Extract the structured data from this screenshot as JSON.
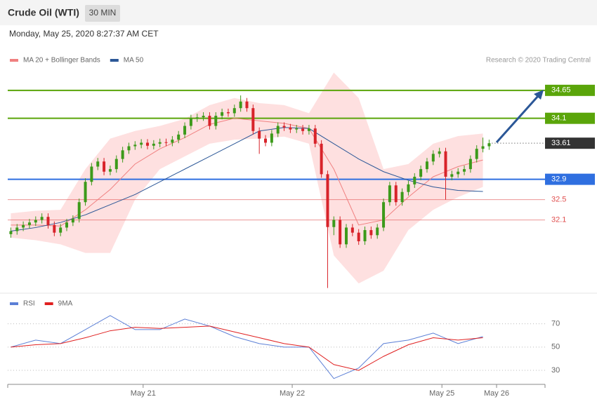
{
  "header": {
    "title": "Crude Oil (WTI)",
    "badge": "30 MIN",
    "date": "Monday, May 25, 2020 8:27:37 AM CET",
    "credit": "Research © 2020 Trading Central"
  },
  "chart_data": [
    {
      "type": "candlestick",
      "xlim": [
        -0.5,
        86
      ],
      "ylim": [
        30.7,
        35.6
      ],
      "candles": {
        "up_color": "#3c9a1a",
        "down_color": "#d8232a",
        "x": [
          0,
          1,
          2,
          3,
          4,
          5,
          6,
          7,
          8,
          9,
          10,
          11,
          12,
          13,
          14,
          15,
          16,
          17,
          18,
          19,
          20,
          21,
          22,
          23,
          24,
          25,
          26,
          27,
          28,
          29,
          30,
          31,
          32,
          33,
          34,
          35,
          36,
          37,
          38,
          39,
          40,
          41,
          42,
          43,
          44,
          45,
          46,
          47,
          48,
          49,
          50,
          51,
          52,
          53,
          54,
          55,
          56,
          57,
          58,
          59,
          60,
          61,
          62,
          63,
          64,
          65,
          66,
          67,
          68,
          69,
          70,
          71,
          72,
          73,
          74,
          75,
          76,
          77
        ],
        "open": [
          31.82,
          31.88,
          31.95,
          32.0,
          32.05,
          32.1,
          32.16,
          32.0,
          31.85,
          31.95,
          32.05,
          32.12,
          32.45,
          32.85,
          33.15,
          33.25,
          33.05,
          33.1,
          33.3,
          33.47,
          33.55,
          33.58,
          33.62,
          33.56,
          33.6,
          33.63,
          33.62,
          33.68,
          33.78,
          33.95,
          34.1,
          34.12,
          34.15,
          33.95,
          34.15,
          34.22,
          34.2,
          34.3,
          34.43,
          34.3,
          33.85,
          33.7,
          33.62,
          33.8,
          33.95,
          33.92,
          33.88,
          33.9,
          33.85,
          33.9,
          33.6,
          33.0,
          31.96,
          32.1,
          31.62,
          31.95,
          31.85,
          31.68,
          31.9,
          31.8,
          31.95,
          32.45,
          32.78,
          32.45,
          32.65,
          32.8,
          32.95,
          33.1,
          33.25,
          33.4,
          33.45,
          32.95,
          33.0,
          33.05,
          33.1,
          33.3,
          33.5,
          33.55
        ],
        "high": [
          31.95,
          32.02,
          32.07,
          32.12,
          32.17,
          32.23,
          32.23,
          32.07,
          32.02,
          32.12,
          32.19,
          32.52,
          32.92,
          33.22,
          33.32,
          33.32,
          33.17,
          33.37,
          33.54,
          33.62,
          33.65,
          33.69,
          33.69,
          33.67,
          33.7,
          33.7,
          33.75,
          33.85,
          34.02,
          34.17,
          34.19,
          34.22,
          34.22,
          34.22,
          34.29,
          34.29,
          34.37,
          34.55,
          34.5,
          34.37,
          33.92,
          33.77,
          33.87,
          34.02,
          34.02,
          33.99,
          33.97,
          33.97,
          33.97,
          33.97,
          33.67,
          33.07,
          32.17,
          32.17,
          32.02,
          32.02,
          31.92,
          31.97,
          31.97,
          32.02,
          32.52,
          32.85,
          32.85,
          32.72,
          32.87,
          33.02,
          33.17,
          33.32,
          33.47,
          33.52,
          33.52,
          33.07,
          33.12,
          33.17,
          33.37,
          33.57,
          33.72,
          33.68
        ],
        "low": [
          31.75,
          31.81,
          31.88,
          31.93,
          31.98,
          32.03,
          31.93,
          31.78,
          31.78,
          31.88,
          31.98,
          32.05,
          32.38,
          32.78,
          33.08,
          32.98,
          32.98,
          33.03,
          33.23,
          33.4,
          33.48,
          33.51,
          33.49,
          33.49,
          33.53,
          33.55,
          33.55,
          33.61,
          33.71,
          33.88,
          34.03,
          34.05,
          33.88,
          33.88,
          34.08,
          34.13,
          34.13,
          34.23,
          34.23,
          33.78,
          33.4,
          33.55,
          33.55,
          33.73,
          33.85,
          33.81,
          33.81,
          33.78,
          33.78,
          33.53,
          32.93,
          30.76,
          31.8,
          31.55,
          31.55,
          31.78,
          31.61,
          31.61,
          31.73,
          31.73,
          31.88,
          32.38,
          32.38,
          32.38,
          32.58,
          32.73,
          32.88,
          33.03,
          33.18,
          33.33,
          32.5,
          32.88,
          32.93,
          32.98,
          33.03,
          33.23,
          33.43,
          33.48
        ],
        "close": [
          31.88,
          31.95,
          32.0,
          32.05,
          32.1,
          32.16,
          32.0,
          31.85,
          31.95,
          32.05,
          32.12,
          32.45,
          32.85,
          33.15,
          33.25,
          33.05,
          33.1,
          33.3,
          33.47,
          33.55,
          33.58,
          33.62,
          33.56,
          33.6,
          33.63,
          33.62,
          33.68,
          33.78,
          33.95,
          34.1,
          34.12,
          34.15,
          33.95,
          34.15,
          34.22,
          34.2,
          34.3,
          34.43,
          34.3,
          33.85,
          33.7,
          33.62,
          33.8,
          33.95,
          33.92,
          33.88,
          33.9,
          33.85,
          33.9,
          33.6,
          33.0,
          31.96,
          32.1,
          31.62,
          31.95,
          31.85,
          31.68,
          31.9,
          31.8,
          31.95,
          32.45,
          32.78,
          32.45,
          32.65,
          32.8,
          32.95,
          33.1,
          33.25,
          33.4,
          33.45,
          32.95,
          33.0,
          33.05,
          33.1,
          33.3,
          33.5,
          33.55,
          33.61
        ]
      },
      "overlay_x": [
        0,
        4,
        8,
        12,
        16,
        20,
        24,
        28,
        32,
        36,
        40,
        44,
        48,
        52,
        56,
        60,
        64,
        68,
        72,
        76
      ],
      "bands": {
        "color": "#fdd5d5",
        "upper": [
          32.23,
          32.28,
          32.3,
          33.1,
          33.7,
          33.85,
          33.95,
          34.09,
          34.36,
          34.5,
          34.4,
          34.36,
          34.2,
          35.0,
          34.5,
          33.1,
          33.2,
          33.6,
          33.75,
          33.8
        ],
        "lower": [
          31.75,
          31.7,
          31.62,
          31.45,
          31.45,
          32.5,
          33.1,
          33.35,
          33.6,
          33.68,
          33.7,
          33.74,
          33.6,
          31.4,
          30.85,
          31.1,
          31.9,
          32.3,
          32.55,
          32.75
        ]
      },
      "series": [
        {
          "name": "MA 20 + Bollinger Bands",
          "color": "#f08080",
          "values": [
            32.0,
            32.0,
            31.98,
            32.3,
            32.7,
            33.2,
            33.5,
            33.72,
            33.98,
            34.1,
            34.05,
            34.0,
            33.9,
            33.1,
            32.0,
            32.1,
            32.55,
            32.95,
            33.15,
            33.28
          ]
        },
        {
          "name": "MA 50",
          "color": "#2b5797",
          "values": [
            31.88,
            31.95,
            32.05,
            32.2,
            32.4,
            32.6,
            32.85,
            33.1,
            33.35,
            33.6,
            33.85,
            33.92,
            33.9,
            33.6,
            33.3,
            33.05,
            32.88,
            32.75,
            32.68,
            32.66
          ]
        }
      ],
      "levels": [
        {
          "value": 34.65,
          "color": "#5aa50a",
          "style": "box"
        },
        {
          "value": 34.1,
          "color": "#5aa50a",
          "style": "box"
        },
        {
          "value": 33.61,
          "color": "#333333",
          "style": "box-dotted"
        },
        {
          "value": 32.9,
          "color": "#2f6fe0",
          "style": "box"
        },
        {
          "value": 32.5,
          "color": "#e05050",
          "style": "text"
        },
        {
          "value": 32.1,
          "color": "#e05050",
          "style": "text"
        }
      ]
    },
    {
      "type": "line",
      "xlim": [
        -0.5,
        86
      ],
      "ylim": [
        18,
        83
      ],
      "x": [
        0,
        4,
        8,
        12,
        16,
        20,
        24,
        28,
        32,
        36,
        40,
        44,
        48,
        52,
        56,
        60,
        64,
        68,
        72,
        76
      ],
      "yticks": [
        70,
        50,
        30
      ],
      "grid": true,
      "xticks": [
        {
          "value": 21.3,
          "label": "May 21"
        },
        {
          "value": 45.3,
          "label": "May 22"
        },
        {
          "value": 69.4,
          "label": "May 25"
        },
        {
          "value": 78.2,
          "label": "May 26"
        }
      ],
      "series": [
        {
          "name": "RSI",
          "color": "#5b7fd6",
          "values": [
            50,
            56,
            53,
            65,
            77,
            65,
            65,
            74,
            68,
            59,
            53,
            50,
            50,
            23,
            32,
            53,
            56,
            62,
            53,
            59
          ]
        },
        {
          "name": "9MA",
          "color": "#e02020",
          "values": [
            50,
            52,
            53,
            58,
            64,
            67,
            66,
            67,
            68,
            63,
            58,
            53,
            50,
            35,
            30,
            42,
            52,
            58,
            56,
            58
          ]
        }
      ]
    }
  ]
}
